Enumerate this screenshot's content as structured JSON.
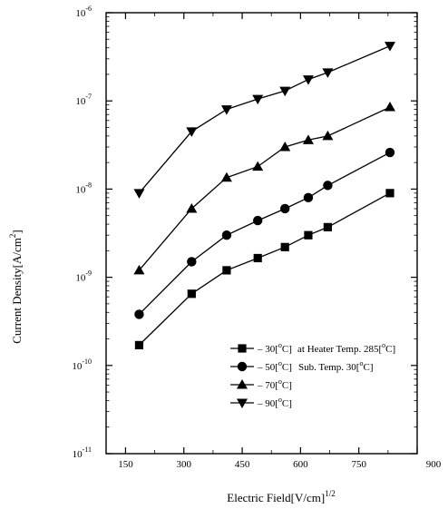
{
  "chart_data": {
    "type": "line",
    "xlabel": "Electric Field[V/cm]",
    "xlabel_sup": "1/2",
    "ylabel": "Current Density[A/cm",
    "ylabel_sup": "2",
    "ylabel_close": "]",
    "xlim": [
      100,
      900
    ],
    "ylim_exp": [
      -11,
      -6
    ],
    "yscale": "log",
    "xticks": [
      150,
      300,
      450,
      600,
      750,
      900
    ],
    "xtick_labels": [
      "150",
      "300",
      "450",
      "600",
      "750",
      "900"
    ],
    "yticks_exp": [
      -11,
      -10,
      -9,
      -8,
      -7,
      -6
    ],
    "ytick_base": "10",
    "ytick_exps": [
      "-11",
      "-10",
      "-9",
      "-8",
      "-7",
      "-6"
    ],
    "grid": false,
    "legend_position": "lower-right",
    "series": [
      {
        "name": "30[°C]",
        "label_parts": [
          "– 30[",
          "o",
          "C]"
        ],
        "marker": "square",
        "x": [
          185,
          320,
          410,
          490,
          560,
          620,
          670,
          830
        ],
        "y": [
          1.7e-10,
          6.5e-10,
          1.2e-09,
          1.65e-09,
          2.2e-09,
          3e-09,
          3.7e-09,
          9e-09
        ]
      },
      {
        "name": "50[°C]",
        "label_parts": [
          "– 50[",
          "o",
          "C]"
        ],
        "marker": "circle",
        "x": [
          185,
          320,
          410,
          490,
          560,
          620,
          670,
          830
        ],
        "y": [
          3.8e-10,
          1.5e-09,
          3e-09,
          4.4e-09,
          6e-09,
          8e-09,
          1.1e-08,
          2.6e-08
        ]
      },
      {
        "name": "70[°C]",
        "label_parts": [
          "– 70[",
          "o",
          "C]"
        ],
        "marker": "triangle-up",
        "x": [
          185,
          320,
          410,
          490,
          560,
          620,
          670,
          830
        ],
        "y": [
          1.2e-09,
          6e-09,
          1.35e-08,
          1.8e-08,
          3e-08,
          3.6e-08,
          4e-08,
          8.5e-08
        ]
      },
      {
        "name": "90[°C]",
        "label_parts": [
          "– 90[",
          "o",
          "C]"
        ],
        "marker": "triangle-down",
        "x": [
          185,
          320,
          410,
          490,
          560,
          620,
          670,
          830
        ],
        "y": [
          9e-09,
          4.5e-08,
          8e-08,
          1.05e-07,
          1.3e-07,
          1.75e-07,
          2.1e-07,
          4.2e-07
        ]
      }
    ],
    "annotations": [
      {
        "parts": [
          "at Heater Temp. 285[",
          "o",
          "C]"
        ]
      },
      {
        "parts": [
          "Sub. Temp.   30[",
          "o",
          "C]"
        ]
      }
    ]
  }
}
